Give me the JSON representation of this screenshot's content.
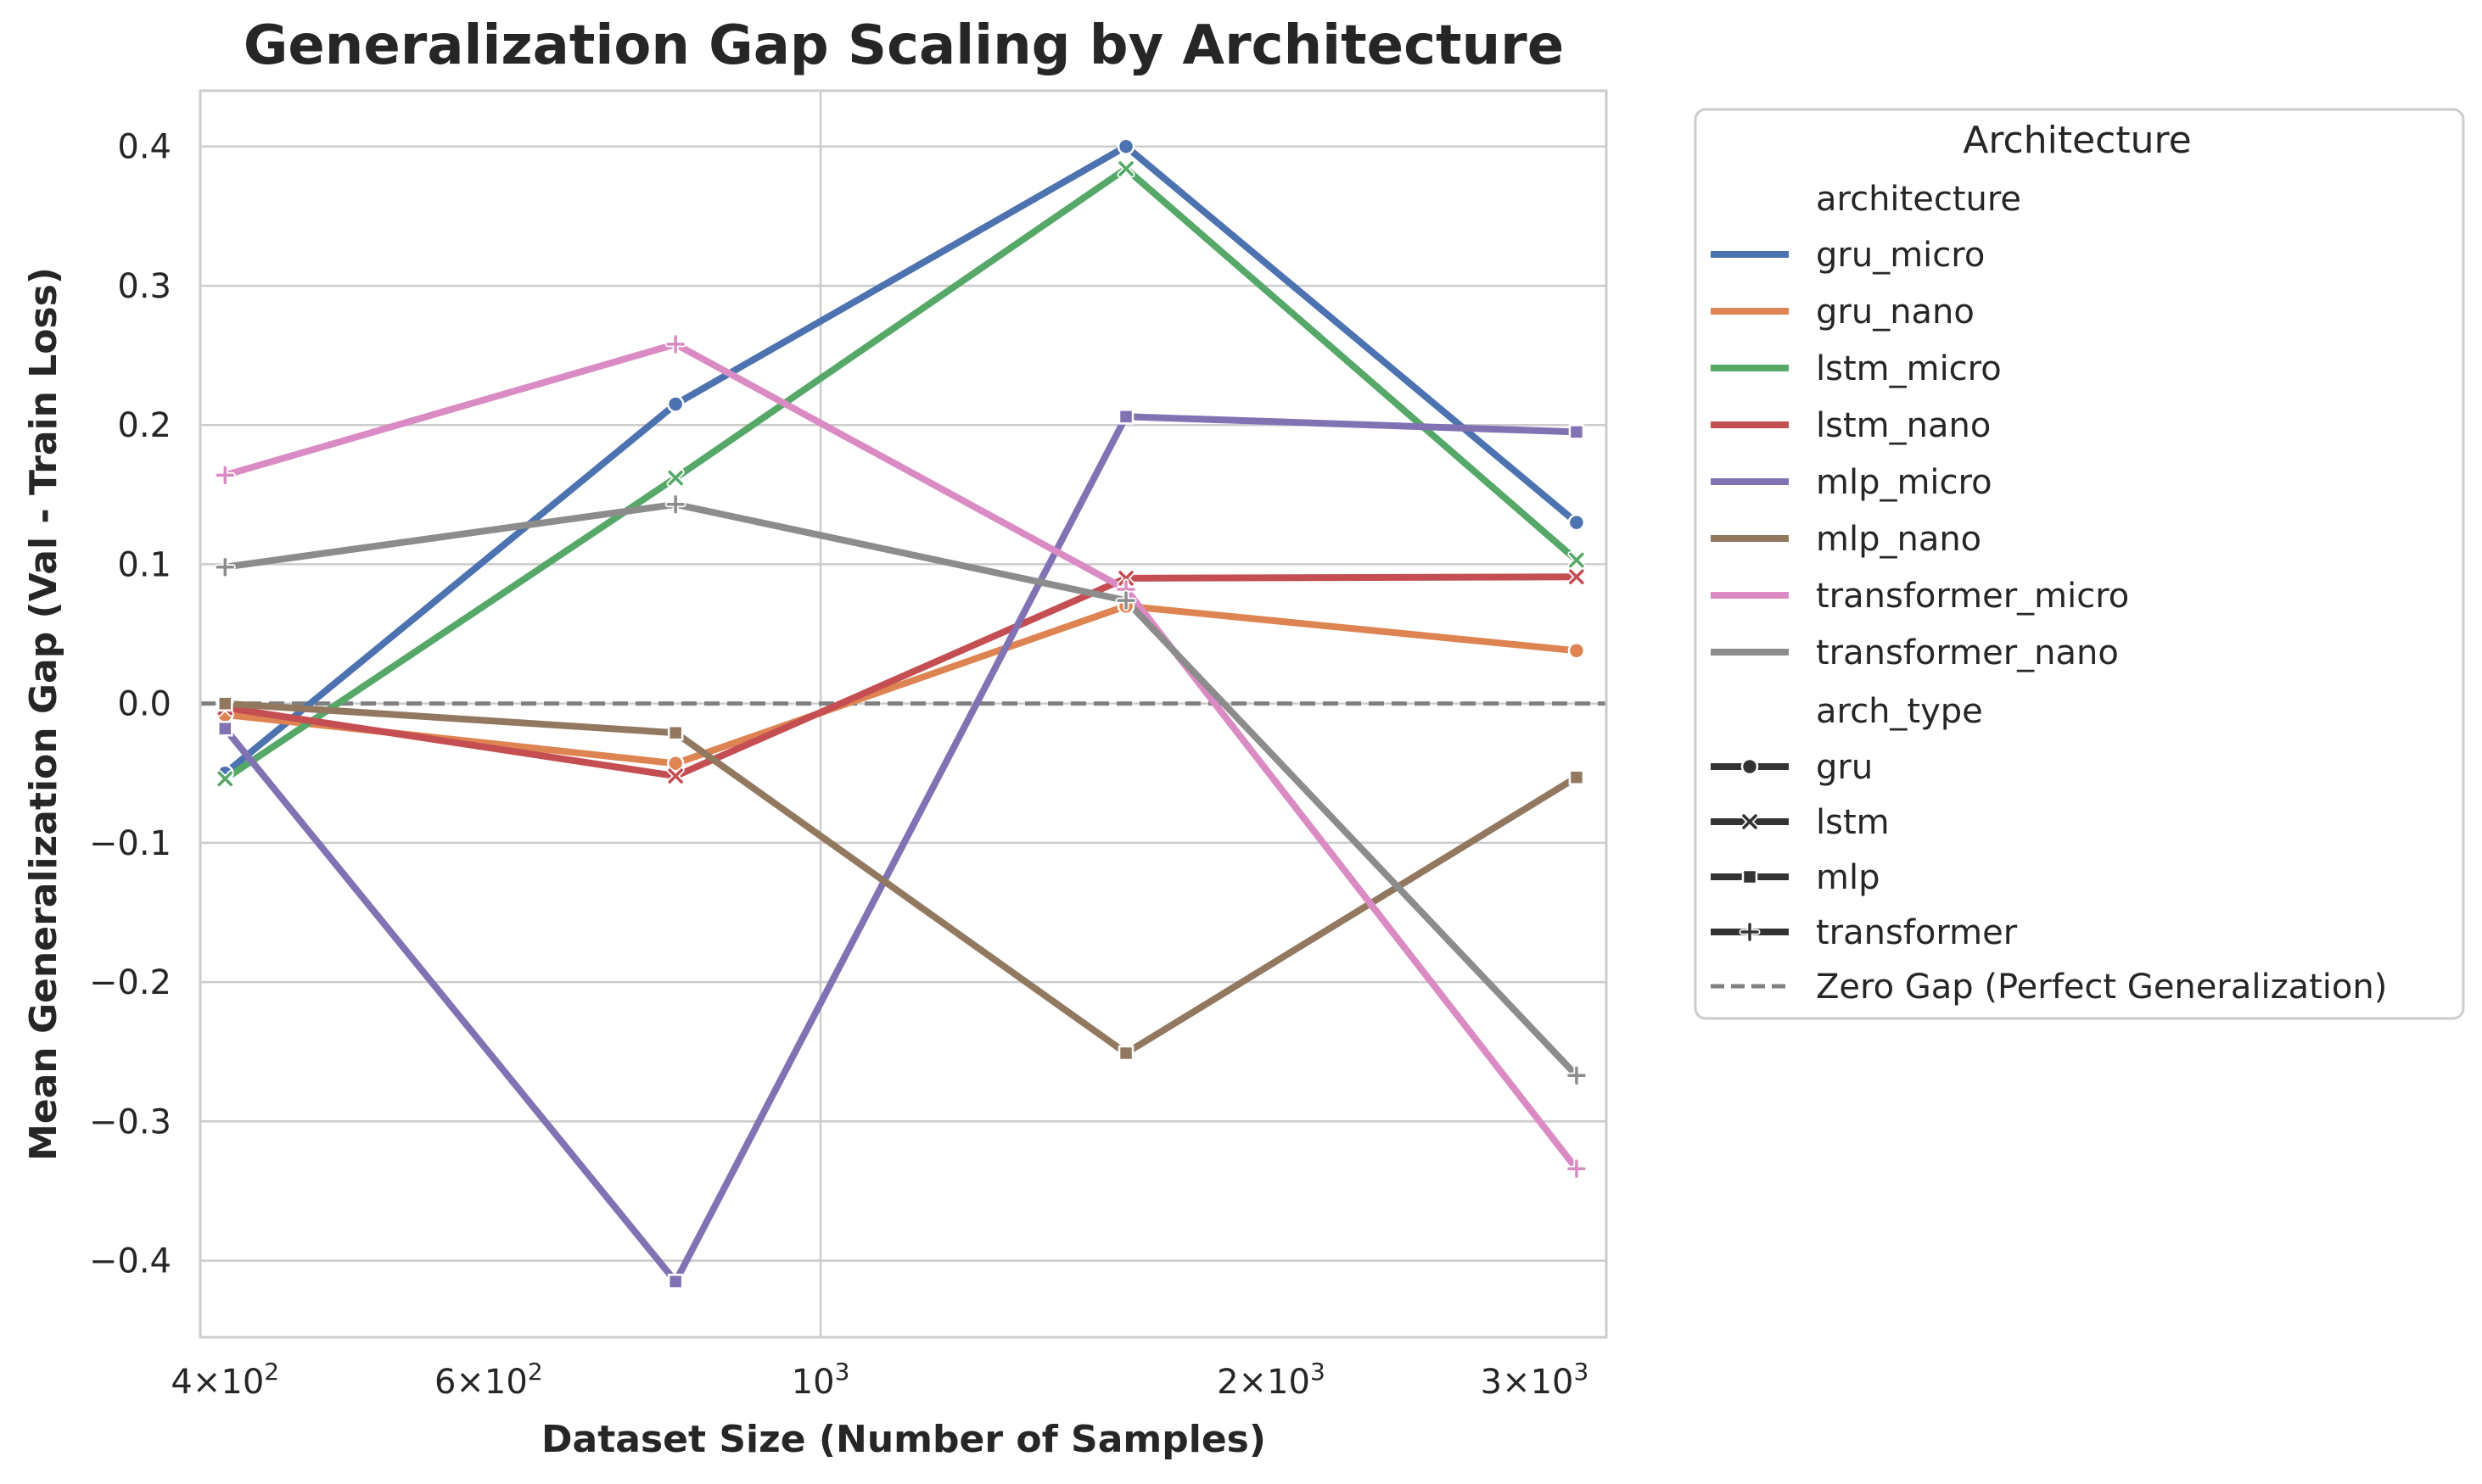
{
  "chart_data": {
    "type": "line",
    "title": "Generalization Gap Scaling by Architecture",
    "xlabel": "Dataset Size (Number of Samples)",
    "ylabel": "Mean Generalization Gap (Val - Train Loss)",
    "xscale": "log",
    "xlim": [
      385,
      3350
    ],
    "ylim": [
      -0.455,
      0.44
    ],
    "x": [
      400,
      800,
      1600,
      3200
    ],
    "x_tick_values": [
      400,
      600,
      1000,
      2000,
      3000
    ],
    "x_tick_labels": [
      {
        "base": "4×10",
        "exp": "2"
      },
      {
        "base": "6×10",
        "exp": "2"
      },
      {
        "base": "10",
        "exp": "3"
      },
      {
        "base": "2×10",
        "exp": "3"
      },
      {
        "base": "3×10",
        "exp": "3"
      }
    ],
    "y_ticks": [
      -0.4,
      -0.3,
      -0.2,
      -0.1,
      0.0,
      0.1,
      0.2,
      0.3,
      0.4
    ],
    "y_tick_labels": [
      "−0.4",
      "−0.3",
      "−0.2",
      "−0.1",
      "0.0",
      "0.1",
      "0.2",
      "0.3",
      "0.4"
    ],
    "grid": true,
    "legend_position": "outside-right",
    "series": [
      {
        "name": "gru_micro",
        "color": "#4C72B0",
        "marker": "circle",
        "values": [
          -0.05,
          0.215,
          0.4,
          0.13
        ]
      },
      {
        "name": "gru_nano",
        "color": "#DD8452",
        "marker": "circle",
        "values": [
          -0.008,
          -0.043,
          0.07,
          0.038
        ]
      },
      {
        "name": "lstm_micro",
        "color": "#55A868",
        "marker": "x",
        "values": [
          -0.054,
          0.162,
          0.384,
          0.103
        ]
      },
      {
        "name": "lstm_nano",
        "color": "#C44E52",
        "marker": "x",
        "values": [
          -0.003,
          -0.052,
          0.09,
          0.091
        ]
      },
      {
        "name": "mlp_micro",
        "color": "#8172B3",
        "marker": "square",
        "values": [
          -0.018,
          -0.415,
          0.206,
          0.195
        ]
      },
      {
        "name": "mlp_nano",
        "color": "#937860",
        "marker": "square",
        "values": [
          0.0,
          -0.021,
          -0.251,
          -0.053
        ]
      },
      {
        "name": "transformer_micro",
        "color": "#DA8BC3",
        "marker": "plus",
        "values": [
          0.164,
          0.258,
          0.082,
          -0.334
        ]
      },
      {
        "name": "transformer_nano",
        "color": "#8C8C8C",
        "marker": "plus",
        "values": [
          0.098,
          0.143,
          0.074,
          -0.267
        ]
      }
    ],
    "reference_line": {
      "y": 0.0,
      "label": "Zero Gap (Perfect Generalization)",
      "color": "#808080",
      "style": "dashed"
    },
    "legend": {
      "title": "Architecture",
      "hue_header": "architecture",
      "style_header": "arch_type",
      "style_entries": [
        {
          "label": "gru",
          "marker": "circle"
        },
        {
          "label": "lstm",
          "marker": "x"
        },
        {
          "label": "mlp",
          "marker": "square"
        },
        {
          "label": "transformer",
          "marker": "plus"
        }
      ]
    }
  }
}
